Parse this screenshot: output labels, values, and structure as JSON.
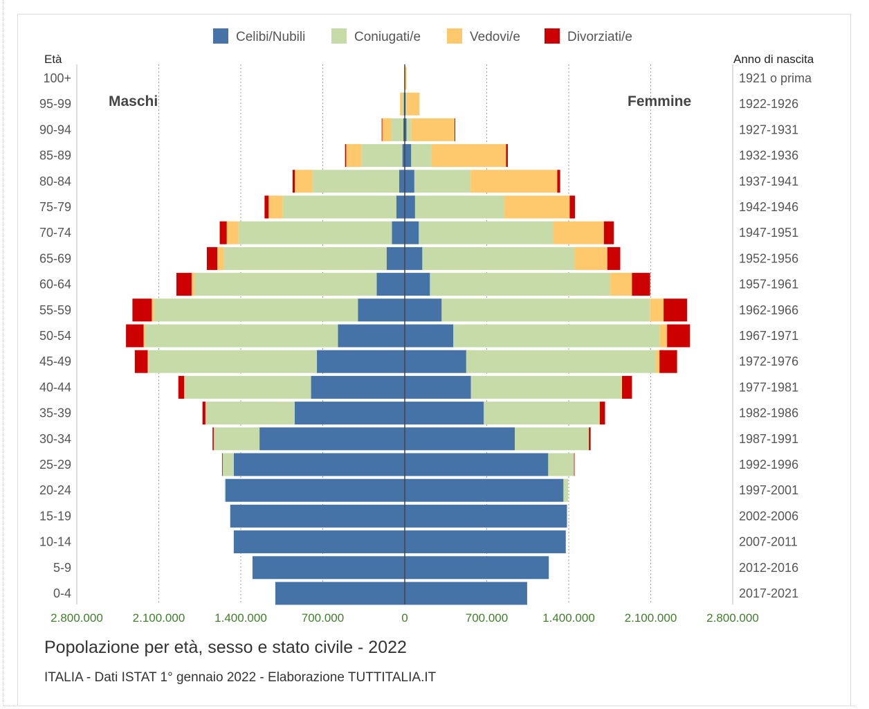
{
  "chart_data": {
    "type": "bar",
    "orientation": "horizontal-stacked-population-pyramid",
    "title": "Popolazione per età, sesso e stato civile - 2022",
    "subtitle": "ITALIA - Dati ISTAT 1° gennaio 2022 - Elaborazione TUTTITALIA.IT",
    "left_axis_label": "Età",
    "right_axis_label": "Anno di nascita",
    "left_group_label": "Maschi",
    "right_group_label": "Femmine",
    "age_groups": [
      "100+",
      "95-99",
      "90-94",
      "85-89",
      "80-84",
      "75-79",
      "70-74",
      "65-69",
      "60-64",
      "55-59",
      "50-54",
      "45-49",
      "40-44",
      "35-39",
      "30-34",
      "25-29",
      "20-24",
      "15-19",
      "10-14",
      "5-9",
      "0-4"
    ],
    "birth_years": [
      "1921 o prima",
      "1922-1926",
      "1927-1931",
      "1932-1936",
      "1937-1941",
      "1942-1946",
      "1947-1951",
      "1952-1956",
      "1957-1961",
      "1962-1966",
      "1967-1971",
      "1972-1976",
      "1977-1981",
      "1982-1986",
      "1987-1991",
      "1992-1996",
      "1997-2001",
      "2002-2006",
      "2007-2011",
      "2012-2016",
      "2017-2021"
    ],
    "x_ticks": [
      "2.800.000",
      "2.100.000",
      "1.400.000",
      "700.000",
      "0",
      "700.000",
      "1.400.000",
      "2.100.000",
      "2.800.000"
    ],
    "x_tick_values": [
      -2800000,
      -2100000,
      -1400000,
      -700000,
      0,
      700000,
      1400000,
      2100000,
      2800000
    ],
    "xlim": [
      -2800000,
      2800000
    ],
    "legend_position": "top",
    "grid": true,
    "series": [
      {
        "name": "Celibi/Nubili",
        "color": "#4573a7",
        "male": [
          2000,
          8000,
          12000,
          20000,
          48000,
          72000,
          110000,
          155000,
          240000,
          400000,
          570000,
          750000,
          800000,
          940000,
          1240000,
          1460000,
          1530000,
          1490000,
          1460000,
          1300000,
          1105000
        ],
        "female": [
          2000,
          8000,
          15000,
          55000,
          82000,
          88000,
          120000,
          150000,
          215000,
          315000,
          415000,
          525000,
          565000,
          675000,
          940000,
          1225000,
          1355000,
          1385000,
          1375000,
          1230000,
          1045000
        ]
      },
      {
        "name": "Coniugati/e",
        "color": "#c7dba8",
        "male": [
          1000,
          12000,
          100000,
          350000,
          740000,
          970000,
          1310000,
          1390000,
          1550000,
          1740000,
          1650000,
          1440000,
          1080000,
          760000,
          390000,
          95000,
          8000,
          0,
          0,
          0,
          0
        ],
        "female": [
          1000,
          8000,
          40000,
          170000,
          480000,
          760000,
          1150000,
          1300000,
          1540000,
          1780000,
          1760000,
          1620000,
          1280000,
          985000,
          630000,
          220000,
          40000,
          0,
          0,
          0,
          0
        ]
      },
      {
        "name": "Vedovi/e",
        "color": "#fdc96c",
        "male": [
          2000,
          20000,
          80000,
          130000,
          150000,
          120000,
          100000,
          55000,
          30000,
          20000,
          10000,
          5000,
          3000,
          2000,
          1000,
          0,
          0,
          0,
          0,
          0,
          0
        ],
        "female": [
          12000,
          110000,
          370000,
          640000,
          740000,
          560000,
          430000,
          280000,
          185000,
          115000,
          65000,
          30000,
          10000,
          5000,
          2000,
          0,
          0,
          0,
          0,
          0,
          0
        ]
      },
      {
        "name": "Divorziati/e",
        "color": "#cc0000",
        "male": [
          0,
          0,
          5000,
          10000,
          20000,
          35000,
          60000,
          90000,
          130000,
          165000,
          150000,
          110000,
          50000,
          25000,
          10000,
          5000,
          0,
          0,
          0,
          0,
          0
        ],
        "female": [
          0,
          0,
          6000,
          15000,
          25000,
          45000,
          85000,
          110000,
          155000,
          200000,
          195000,
          150000,
          85000,
          45000,
          15000,
          5000,
          0,
          0,
          0,
          0,
          0
        ]
      }
    ]
  }
}
